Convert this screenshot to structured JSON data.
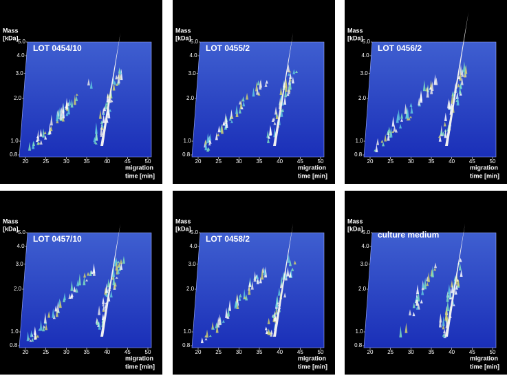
{
  "panels": [
    {
      "label": "LOT 0454/10"
    },
    {
      "label": "LOT 0455/2"
    },
    {
      "label": "LOT 0456/2"
    },
    {
      "label": "LOT 0457/10"
    },
    {
      "label": "LOT 0458/2"
    },
    {
      "label": "culture medium"
    }
  ],
  "axes": {
    "y_title": [
      "Mass",
      "[kDa]"
    ],
    "ylog": true,
    "ylim": [
      0.8,
      5
    ],
    "yticks": [
      0.8,
      {
        "value": 1,
        "label": "1.0"
      },
      {
        "value": 2,
        "label": "2.0"
      },
      {
        "value": 3,
        "label": "3.0"
      },
      {
        "value": 4,
        "label": "4.0"
      },
      {
        "value": 5,
        "label": "5.0"
      }
    ],
    "x_title": [
      "migration",
      "time [min]"
    ],
    "xlim": [
      20,
      50
    ],
    "xticks": [
      20,
      25,
      30,
      35,
      40,
      45,
      50
    ]
  }
}
